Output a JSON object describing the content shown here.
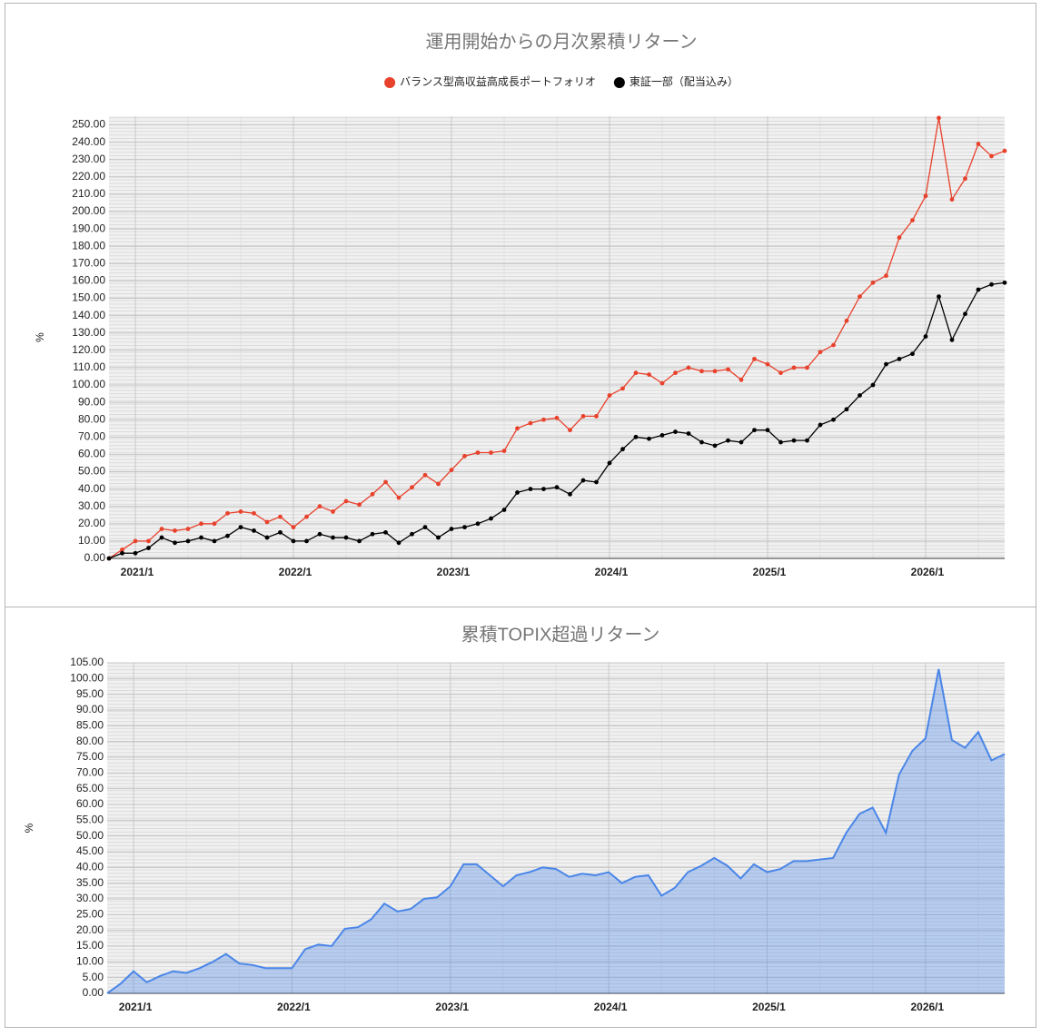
{
  "chart_data": [
    {
      "type": "line",
      "title": "運用開始からの月次累積リターン",
      "y_label": "%",
      "legend": "top",
      "grid": true,
      "categories": [
        null,
        null,
        "2021/1",
        null,
        null,
        null,
        null,
        null,
        null,
        null,
        null,
        null,
        null,
        null,
        "2022/1",
        null,
        null,
        null,
        null,
        null,
        null,
        null,
        null,
        null,
        null,
        null,
        "2023/1",
        null,
        null,
        null,
        null,
        null,
        null,
        null,
        null,
        null,
        null,
        null,
        "2024/1",
        null,
        null,
        null,
        null,
        null,
        null,
        null,
        null,
        null,
        null,
        null,
        "2025/1",
        null,
        null,
        null,
        null,
        null,
        null,
        null,
        null,
        null,
        null,
        null,
        "2026/1",
        null,
        null,
        null,
        null,
        null,
        null
      ],
      "ylim": [
        0,
        255
      ],
      "yticks": [
        {
          "value": 0,
          "label": "0.00"
        },
        {
          "value": 10,
          "label": "10.00"
        },
        {
          "value": 20,
          "label": "20.00"
        },
        {
          "value": 30,
          "label": "30.00"
        },
        {
          "value": 40,
          "label": "40.00"
        },
        {
          "value": 50,
          "label": "50.00"
        },
        {
          "value": 60,
          "label": "60.00"
        },
        {
          "value": 70,
          "label": "70.00"
        },
        {
          "value": 80,
          "label": "80.00"
        },
        {
          "value": 90,
          "label": "90.00"
        },
        {
          "value": 100,
          "label": "100.00"
        },
        {
          "value": 110,
          "label": "110.00"
        },
        {
          "value": 120,
          "label": "120.00"
        },
        {
          "value": 130,
          "label": "130.00"
        },
        {
          "value": 140,
          "label": "140.00"
        },
        {
          "value": 150,
          "label": "150.00"
        },
        {
          "value": 160,
          "label": "160.00"
        },
        {
          "value": 170,
          "label": "170.00"
        },
        {
          "value": 180,
          "label": "180.00"
        },
        {
          "value": 190,
          "label": "190.00"
        },
        {
          "value": 200,
          "label": "200.00"
        },
        {
          "value": 210,
          "label": "210.00"
        },
        {
          "value": 220,
          "label": "220.00"
        },
        {
          "value": 230,
          "label": "230.00"
        },
        {
          "value": 240,
          "label": "240.00"
        },
        {
          "value": 250,
          "label": "250.00"
        }
      ],
      "series": [
        {
          "name": "バランス型高収益高成長ポートフォリオ",
          "color": "#e8412c",
          "values": [
            0,
            5,
            10,
            10,
            17,
            16,
            17,
            20,
            20,
            26,
            27,
            26,
            21,
            24,
            18,
            24,
            30,
            27,
            33,
            31,
            37,
            44,
            35,
            41,
            48,
            43,
            51,
            59,
            61,
            61,
            62,
            75,
            78,
            80,
            81,
            74,
            82,
            82,
            94,
            98,
            107,
            106,
            101,
            107,
            110,
            108,
            108,
            109,
            103,
            115,
            112,
            107,
            110,
            110,
            119,
            123,
            137,
            151,
            159,
            163,
            185,
            195,
            209,
            254,
            207,
            219,
            239,
            232,
            235
          ]
        },
        {
          "name": "東証一部（配当込み）",
          "color": "#000000",
          "values": [
            0,
            3,
            3,
            6,
            12,
            9,
            10,
            12,
            10,
            13,
            18,
            16,
            12,
            15,
            10,
            10,
            14,
            12,
            12,
            10,
            14,
            15,
            9,
            14,
            18,
            12,
            17,
            18,
            20,
            23,
            28,
            38,
            40,
            40,
            41,
            37,
            45,
            44,
            55,
            63,
            70,
            69,
            71,
            73,
            72,
            67,
            65,
            68,
            67,
            74,
            74,
            67,
            68,
            68,
            77,
            80,
            86,
            94,
            100,
            112,
            115,
            118,
            128,
            151,
            126,
            141,
            155,
            158,
            159
          ]
        }
      ]
    },
    {
      "type": "area",
      "title": "累積TOPIX超過リターン",
      "y_label": "%",
      "grid": true,
      "categories": [
        null,
        null,
        "2021/1",
        null,
        null,
        null,
        null,
        null,
        null,
        null,
        null,
        null,
        null,
        null,
        "2022/1",
        null,
        null,
        null,
        null,
        null,
        null,
        null,
        null,
        null,
        null,
        null,
        "2023/1",
        null,
        null,
        null,
        null,
        null,
        null,
        null,
        null,
        null,
        null,
        null,
        "2024/1",
        null,
        null,
        null,
        null,
        null,
        null,
        null,
        null,
        null,
        null,
        null,
        "2025/1",
        null,
        null,
        null,
        null,
        null,
        null,
        null,
        null,
        null,
        null,
        null,
        "2026/1",
        null,
        null,
        null,
        null,
        null,
        null
      ],
      "ylim": [
        0,
        105
      ],
      "yticks": [
        {
          "value": 0,
          "label": "0.00"
        },
        {
          "value": 5,
          "label": "5.00"
        },
        {
          "value": 10,
          "label": "10.00"
        },
        {
          "value": 15,
          "label": "15.00"
        },
        {
          "value": 20,
          "label": "20.00"
        },
        {
          "value": 25,
          "label": "25.00"
        },
        {
          "value": 30,
          "label": "30.00"
        },
        {
          "value": 35,
          "label": "35.00"
        },
        {
          "value": 40,
          "label": "40.00"
        },
        {
          "value": 45,
          "label": "45.00"
        },
        {
          "value": 50,
          "label": "50.00"
        },
        {
          "value": 55,
          "label": "55.00"
        },
        {
          "value": 60,
          "label": "60.00"
        },
        {
          "value": 65,
          "label": "65.00"
        },
        {
          "value": 70,
          "label": "70.00"
        },
        {
          "value": 75,
          "label": "75.00"
        },
        {
          "value": 80,
          "label": "80.00"
        },
        {
          "value": 85,
          "label": "85.00"
        },
        {
          "value": 90,
          "label": "90.00"
        },
        {
          "value": 95,
          "label": "95.00"
        },
        {
          "value": 100,
          "label": "100.00"
        },
        {
          "value": 105,
          "label": "105.00"
        }
      ],
      "series": [
        {
          "color": "#4a86e8",
          "values": [
            0,
            3,
            7,
            3.5,
            5.5,
            7,
            6.5,
            8,
            10,
            12.5,
            9.5,
            9,
            8,
            8,
            8,
            14,
            15.5,
            15,
            20.5,
            21,
            23.5,
            28.5,
            26,
            26.8,
            30,
            30.5,
            34,
            41,
            41,
            37.5,
            34,
            37.5,
            38.5,
            40,
            39.5,
            37,
            38,
            37.5,
            38.5,
            35,
            37,
            37.5,
            31,
            33.5,
            38.5,
            40.5,
            43,
            40.5,
            36.5,
            41,
            38.5,
            39.5,
            42,
            42,
            42.5,
            43,
            51,
            57,
            59,
            51,
            69.5,
            77,
            81,
            103,
            80.5,
            78,
            83,
            74,
            76
          ]
        }
      ]
    }
  ]
}
